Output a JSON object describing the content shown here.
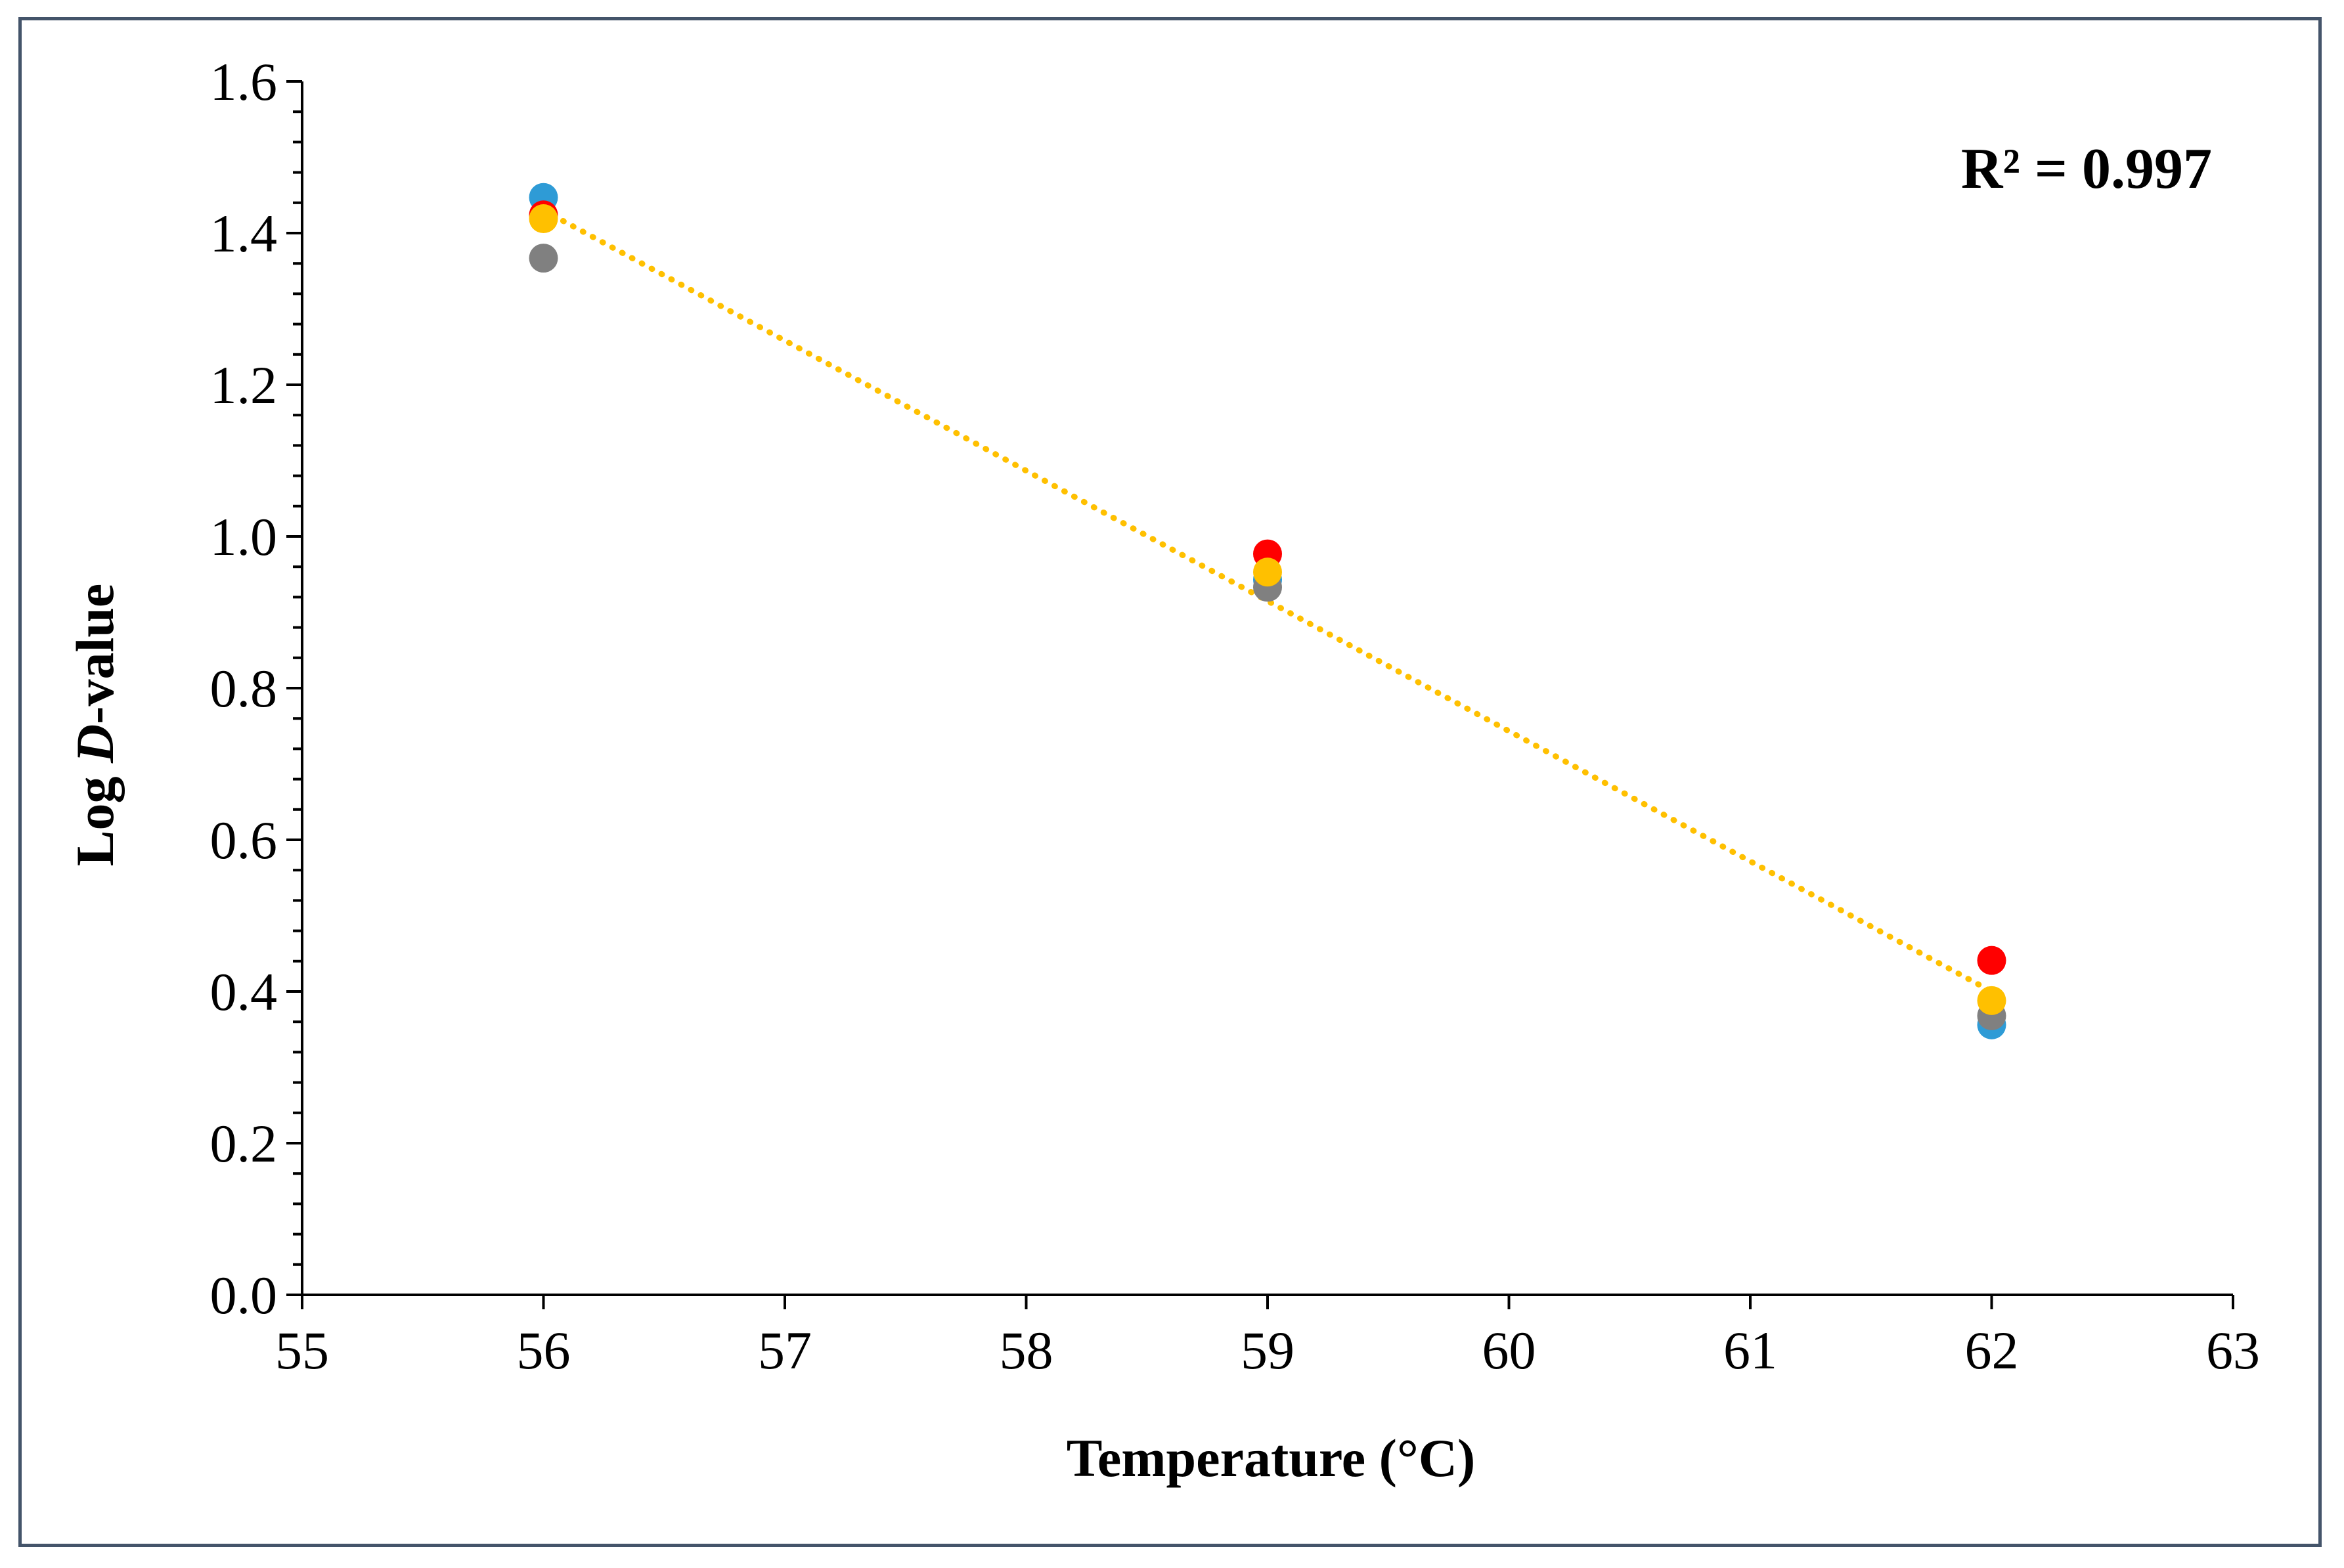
{
  "chart_data": {
    "type": "scatter",
    "title": "",
    "xlabel": "Temperature (°C)",
    "ylabel_prefix": "Log ",
    "ylabel_italic": "D",
    "ylabel_suffix": "-value",
    "xlim": [
      55,
      63
    ],
    "ylim": [
      0.0,
      1.6
    ],
    "x_ticks": [
      "55",
      "56",
      "57",
      "58",
      "59",
      "60",
      "61",
      "62",
      "63"
    ],
    "y_ticks": [
      "0.0",
      "0.2",
      "0.4",
      "0.6",
      "0.8",
      "1.0",
      "1.2",
      "1.4",
      "1.6"
    ],
    "grid": false,
    "legend": "none",
    "series": [
      {
        "color": "#2e9bd6",
        "points": [
          {
            "x": 56,
            "y": 1.447
          },
          {
            "x": 59,
            "y": 0.943
          },
          {
            "x": 62,
            "y": 0.356
          }
        ]
      },
      {
        "color": "#ff0000",
        "points": [
          {
            "x": 56,
            "y": 1.424
          },
          {
            "x": 59,
            "y": 0.977
          },
          {
            "x": 62,
            "y": 0.441
          }
        ]
      },
      {
        "color": "#808080",
        "points": [
          {
            "x": 56,
            "y": 1.367
          },
          {
            "x": 59,
            "y": 0.933
          },
          {
            "x": 62,
            "y": 0.368
          }
        ]
      },
      {
        "color": "#ffc000",
        "points": [
          {
            "x": 56,
            "y": 1.419
          },
          {
            "x": 59,
            "y": 0.953
          },
          {
            "x": 62,
            "y": 0.388
          }
        ]
      }
    ],
    "trendline": {
      "color": "#ffc000",
      "style": "dotted",
      "x": [
        56,
        62
      ],
      "y": [
        1.43,
        0.4
      ]
    },
    "annotation": "R² = 0.997"
  }
}
